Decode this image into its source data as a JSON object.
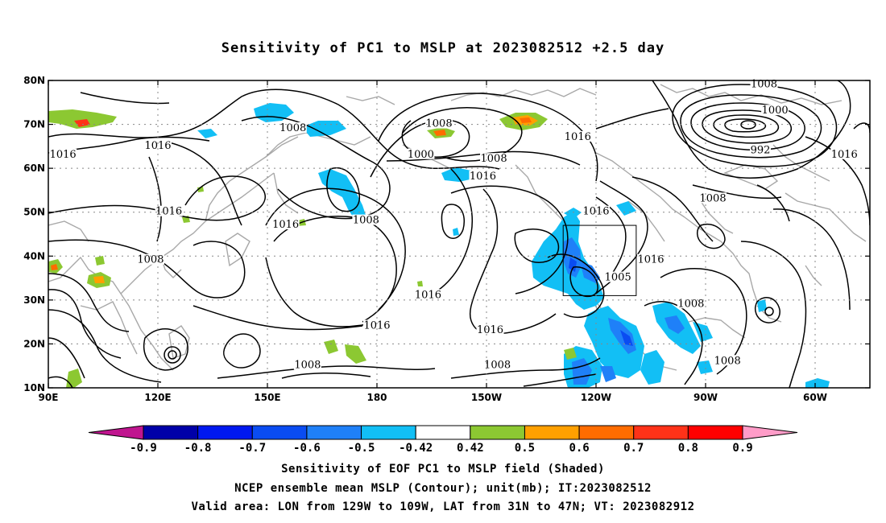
{
  "title": "Sensitivity of PC1 to MSLP at 2023082512 +2.5 day",
  "map": {
    "lon_range": [
      "90E",
      "45W"
    ],
    "lat_range": [
      "10N",
      "80N"
    ],
    "x_ticks": [
      "90E",
      "120E",
      "150E",
      "180",
      "150W",
      "120W",
      "90W",
      "60W"
    ],
    "y_ticks": [
      "10N",
      "20N",
      "30N",
      "40N",
      "50N",
      "60N",
      "70N",
      "80N"
    ],
    "grid": "dotted",
    "valid_box": {
      "lon": [
        "129W",
        "109W"
      ],
      "lat": [
        "31N",
        "47N"
      ]
    },
    "contour_labels": [
      {
        "text": "1008",
        "lon": 157,
        "lat": 69
      },
      {
        "text": "1016",
        "lon": 94,
        "lat": 63
      },
      {
        "text": "1016",
        "lon": 120,
        "lat": 65
      },
      {
        "text": "1016",
        "lon": 123,
        "lat": 50
      },
      {
        "text": "1008",
        "lon": 118,
        "lat": 39
      },
      {
        "text": "1016",
        "lon": 155,
        "lat": 47
      },
      {
        "text": "1008",
        "lon": 177,
        "lat": 48
      },
      {
        "text": "1008",
        "lon": -163,
        "lat": 70
      },
      {
        "text": "1000",
        "lon": -168,
        "lat": 63
      },
      {
        "text": "1008",
        "lon": -148,
        "lat": 62
      },
      {
        "text": "1016",
        "lon": -151,
        "lat": 58
      },
      {
        "text": "1016",
        "lon": -125,
        "lat": 67
      },
      {
        "text": "1016",
        "lon": -120,
        "lat": 50
      },
      {
        "text": "1016",
        "lon": -105,
        "lat": 39
      },
      {
        "text": "1005",
        "lon": -114,
        "lat": 35
      },
      {
        "text": "1016",
        "lon": -166,
        "lat": 31
      },
      {
        "text": "1016",
        "lon": -180,
        "lat": 24
      },
      {
        "text": "1016",
        "lon": -149,
        "lat": 23
      },
      {
        "text": "1008",
        "lon": -94,
        "lat": 29
      },
      {
        "text": "1008",
        "lon": -88,
        "lat": 53
      },
      {
        "text": "1008",
        "lon": -84,
        "lat": 16
      },
      {
        "text": "1008",
        "lon": -147,
        "lat": 15
      },
      {
        "text": "1008",
        "lon": 161,
        "lat": 15
      },
      {
        "text": "1008",
        "lon": -74,
        "lat": 79
      },
      {
        "text": "1000",
        "lon": -71,
        "lat": 73
      },
      {
        "text": "992",
        "lon": -75,
        "lat": 64
      },
      {
        "text": "1016",
        "lon": -52,
        "lat": 63
      }
    ]
  },
  "colorbar": {
    "labels": [
      "-0.9",
      "-0.8",
      "-0.7",
      "-0.6",
      "-0.5",
      "-0.42",
      "0.42",
      "0.5",
      "0.6",
      "0.7",
      "0.8",
      "0.9"
    ],
    "colors": [
      "#c0158f",
      "#0000a8",
      "#0018f0",
      "#0a4cf2",
      "#1f80f8",
      "#12bff5",
      "#ffffff",
      "#8cc832",
      "#ffa000",
      "#ff6c00",
      "#ff3218",
      "#ff0000",
      "#ff9cc8"
    ]
  },
  "footer": {
    "line1": "Sensitivity of EOF PC1 to MSLP field (Shaded)",
    "line2": "NCEP ensemble mean MSLP (Contour); unit(mb); IT:2023082512",
    "line3": "Valid area: LON from 129W to 109W, LAT from 31N to 47N; VT: 2023082912"
  }
}
